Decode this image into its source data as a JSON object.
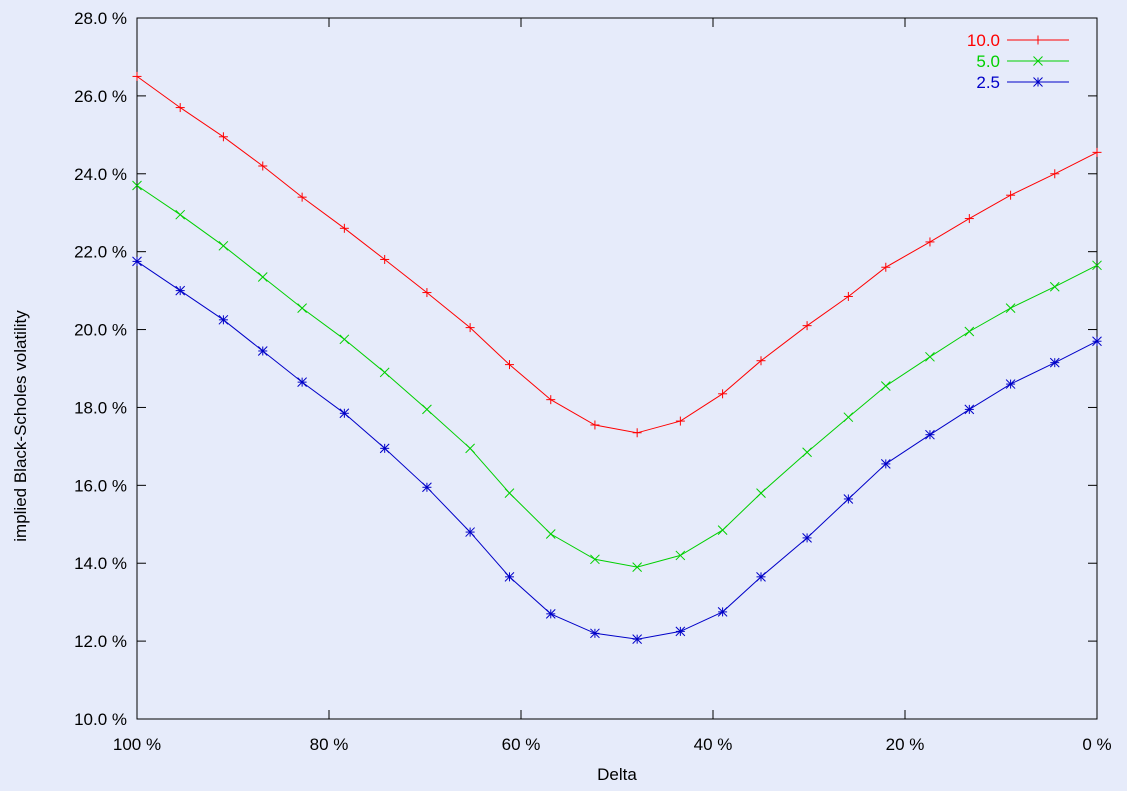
{
  "chart_data": {
    "type": "line",
    "title": "",
    "xlabel": "Delta",
    "ylabel": "implied Black-Scholes volatility",
    "x_reversed": true,
    "xlim": [
      100,
      0
    ],
    "ylim": [
      10,
      28
    ],
    "x_ticks": [
      100,
      80,
      60,
      40,
      20,
      0
    ],
    "x_tick_labels": [
      "100 %",
      "80 %",
      "60 %",
      "40 %",
      "20 %",
      "0 %"
    ],
    "y_ticks": [
      10,
      12,
      14,
      16,
      18,
      20,
      22,
      24,
      26,
      28
    ],
    "y_tick_labels": [
      "10.0 %",
      "12.0 %",
      "14.0 %",
      "16.0 %",
      "18.0 %",
      "20.0 %",
      "22.0 %",
      "24.0 %",
      "26.0 %",
      "28.0 %"
    ],
    "grid": false,
    "legend_position": "top-right",
    "x": [
      100,
      95.5,
      91,
      86.9,
      82.8,
      78.4,
      74.2,
      69.8,
      65.3,
      61.2,
      56.9,
      52.3,
      47.9,
      43.4,
      39,
      35,
      30.2,
      25.9,
      22,
      17.4,
      13.3,
      9,
      4.4,
      0
    ],
    "series": [
      {
        "name": "10.0",
        "color": "#ff0000",
        "marker": "plus",
        "values": [
          26.5,
          25.7,
          24.95,
          24.2,
          23.4,
          22.6,
          21.8,
          20.95,
          20.05,
          19.1,
          18.2,
          17.55,
          17.35,
          17.65,
          18.35,
          19.2,
          20.1,
          20.85,
          21.6,
          22.25,
          22.85,
          23.45,
          24.0,
          24.55
        ]
      },
      {
        "name": "5.0",
        "color": "#00d000",
        "marker": "cross",
        "values": [
          23.7,
          22.95,
          22.15,
          21.35,
          20.55,
          19.75,
          18.9,
          17.95,
          16.95,
          15.8,
          14.75,
          14.1,
          13.9,
          14.2,
          14.85,
          15.8,
          16.85,
          17.75,
          18.55,
          19.3,
          19.95,
          20.55,
          21.1,
          21.65
        ]
      },
      {
        "name": "2.5",
        "color": "#0000c8",
        "marker": "star",
        "values": [
          21.75,
          21.0,
          20.25,
          19.45,
          18.65,
          17.85,
          16.95,
          15.95,
          14.8,
          13.65,
          12.7,
          12.2,
          12.05,
          12.25,
          12.75,
          13.65,
          14.65,
          15.65,
          16.55,
          17.3,
          17.95,
          18.6,
          19.15,
          19.7
        ]
      }
    ]
  }
}
